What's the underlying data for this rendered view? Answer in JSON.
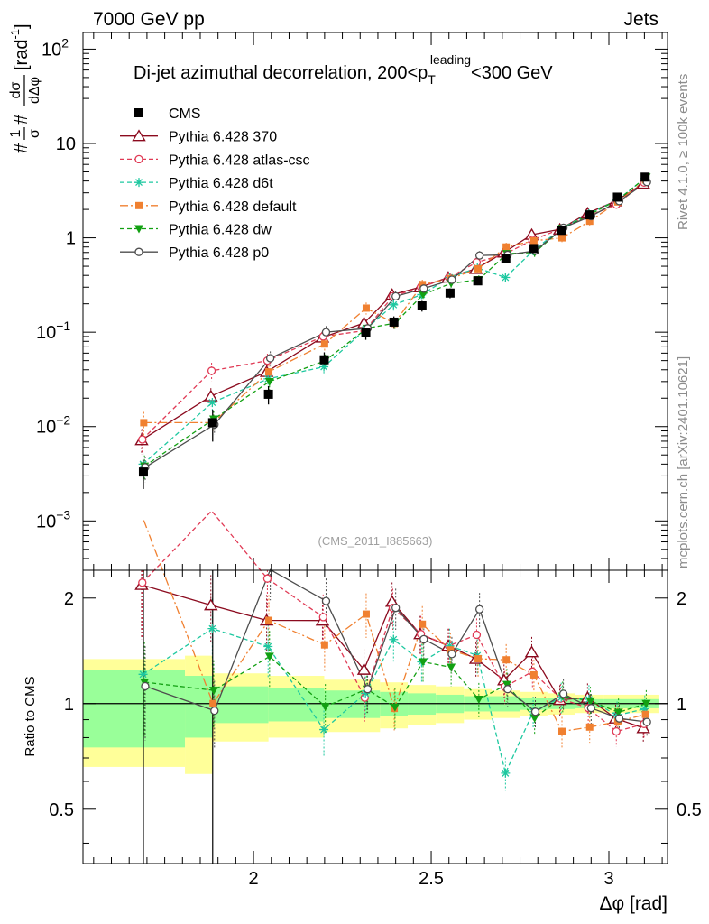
{
  "header": {
    "left": "7000 GeV pp",
    "right": "Jets"
  },
  "side_labels": {
    "rivet": "Rivet 4.1.0, ≥ 100k events",
    "mcplots": "mcplots.cern.ch [arXiv:2401.10621]"
  },
  "chart_data": {
    "type": "line",
    "title": "Di-jet azimuthal decorrelation, 200<p_T^leading<300 GeV",
    "title_parts": {
      "main": "Di-jet azimuthal decorrelation, 200<p",
      "sub": "T",
      "sup": "leading",
      "rest": "<300 GeV"
    },
    "analysis_id": "(CMS_2011_I885663)",
    "ylabel": "1/σ dσ/dΔφ [rad^-1]",
    "ylabel_parts": {
      "a": "#",
      "frac1_num": "1",
      "frac1_den": "σ",
      "b": "#",
      "frac2_num": "dσ",
      "frac2_den": "dΔφ",
      "unit": "[rad",
      "unit_sup": "-1",
      "unit_close": "]"
    },
    "xlabel": "Δφ [rad]",
    "ratio_ylabel": "Ratio to CMS",
    "xlim": [
      1.52,
      3.165
    ],
    "ylim": [
      0.0003,
      150
    ],
    "ratio_ylim": [
      0.35,
      2.4
    ],
    "x_ticks": [
      {
        "v": 2,
        "label": "2"
      },
      {
        "v": 2.5,
        "label": "2.5"
      },
      {
        "v": 3,
        "label": "3"
      }
    ],
    "y_ticks": [
      {
        "v": 0.001,
        "base": "10",
        "exp": "−3"
      },
      {
        "v": 0.01,
        "base": "10",
        "exp": "−2"
      },
      {
        "v": 0.1,
        "base": "10",
        "exp": "−1"
      },
      {
        "v": 1,
        "base": "1",
        "exp": ""
      },
      {
        "v": 10,
        "base": "10",
        "exp": ""
      },
      {
        "v": 100,
        "base": "10",
        "exp": "2"
      }
    ],
    "ratio_ticks": [
      {
        "v": 0.5,
        "label": "0.5"
      },
      {
        "v": 1,
        "label": "1"
      },
      {
        "v": 2,
        "label": "2"
      }
    ],
    "bins": [
      1.52,
      1.807,
      1.885,
      2.042,
      2.199,
      2.356,
      2.434,
      2.513,
      2.592,
      2.67,
      2.749,
      2.827,
      2.906,
      2.985,
      3.063,
      3.142
    ],
    "x": [
      1.69,
      1.885,
      2.042,
      2.199,
      2.316,
      2.395,
      2.474,
      2.553,
      2.631,
      2.71,
      2.788,
      2.867,
      2.945,
      3.024,
      3.102
    ],
    "data": {
      "name": "CMS",
      "values": [
        0.0033,
        0.011,
        0.022,
        0.051,
        0.1,
        0.128,
        0.19,
        0.26,
        0.35,
        0.6,
        0.77,
        1.2,
        1.75,
        2.7,
        4.4
      ],
      "band_inner": [
        0.25,
        0.2,
        0.12,
        0.11,
        0.09,
        0.08,
        0.07,
        0.06,
        0.05,
        0.05,
        0.04,
        0.035,
        0.03,
        0.03,
        0.03
      ],
      "band_outer": [
        0.34,
        0.37,
        0.22,
        0.2,
        0.17,
        0.15,
        0.13,
        0.12,
        0.1,
        0.09,
        0.08,
        0.07,
        0.06,
        0.06,
        0.06
      ],
      "band_note": "relative uncertainty (fraction)"
    },
    "series": [
      {
        "name": "Pythia 6.428 370",
        "color": "#8b0a1e",
        "dash": "",
        "marker": "triangle-open",
        "values": [
          0.0072,
          0.021,
          0.038,
          0.088,
          0.125,
          0.25,
          0.3,
          0.38,
          0.47,
          0.7,
          1.08,
          1.23,
          1.82,
          2.45,
          3.75
        ]
      },
      {
        "name": "Pythia 6.428 atlas-csc",
        "color": "#e03a55",
        "dash": "5,3",
        "marker": "circle-open",
        "values": [
          0.0073,
          0.039,
          0.05,
          0.09,
          0.104,
          0.24,
          0.3,
          0.38,
          0.55,
          0.67,
          0.95,
          1.24,
          1.7,
          2.25,
          3.85
        ]
      },
      {
        "name": "Pythia 6.428 d6t",
        "color": "#1ec8a0",
        "dash": "5,3",
        "marker": "star",
        "values": [
          0.004,
          0.018,
          0.032,
          0.043,
          0.107,
          0.195,
          0.25,
          0.38,
          0.48,
          0.38,
          0.73,
          1.25,
          1.8,
          2.5,
          4.25
        ]
      },
      {
        "name": "Pythia 6.428 default",
        "color": "#f08030",
        "dash": "9,3,2,3",
        "marker": "square",
        "values": [
          0.011,
          0.011,
          0.038,
          0.075,
          0.18,
          0.124,
          0.32,
          0.37,
          0.47,
          0.8,
          0.93,
          1.0,
          1.5,
          2.4,
          4.1
        ]
      },
      {
        "name": "Pythia 6.428 dw",
        "color": "#12a012",
        "dash": "5,3",
        "marker": "triangle-down",
        "values": [
          0.0038,
          0.012,
          0.03,
          0.05,
          0.11,
          0.125,
          0.25,
          0.33,
          0.36,
          0.68,
          0.7,
          1.26,
          1.78,
          2.55,
          4.4
        ]
      },
      {
        "name": "Pythia 6.428 p0",
        "color": "#4d4d4d",
        "dash": "",
        "marker": "circle-open",
        "values": [
          0.0037,
          0.0105,
          0.053,
          0.1,
          0.11,
          0.24,
          0.29,
          0.36,
          0.65,
          0.66,
          0.73,
          1.28,
          1.7,
          2.45,
          3.9
        ]
      }
    ]
  }
}
